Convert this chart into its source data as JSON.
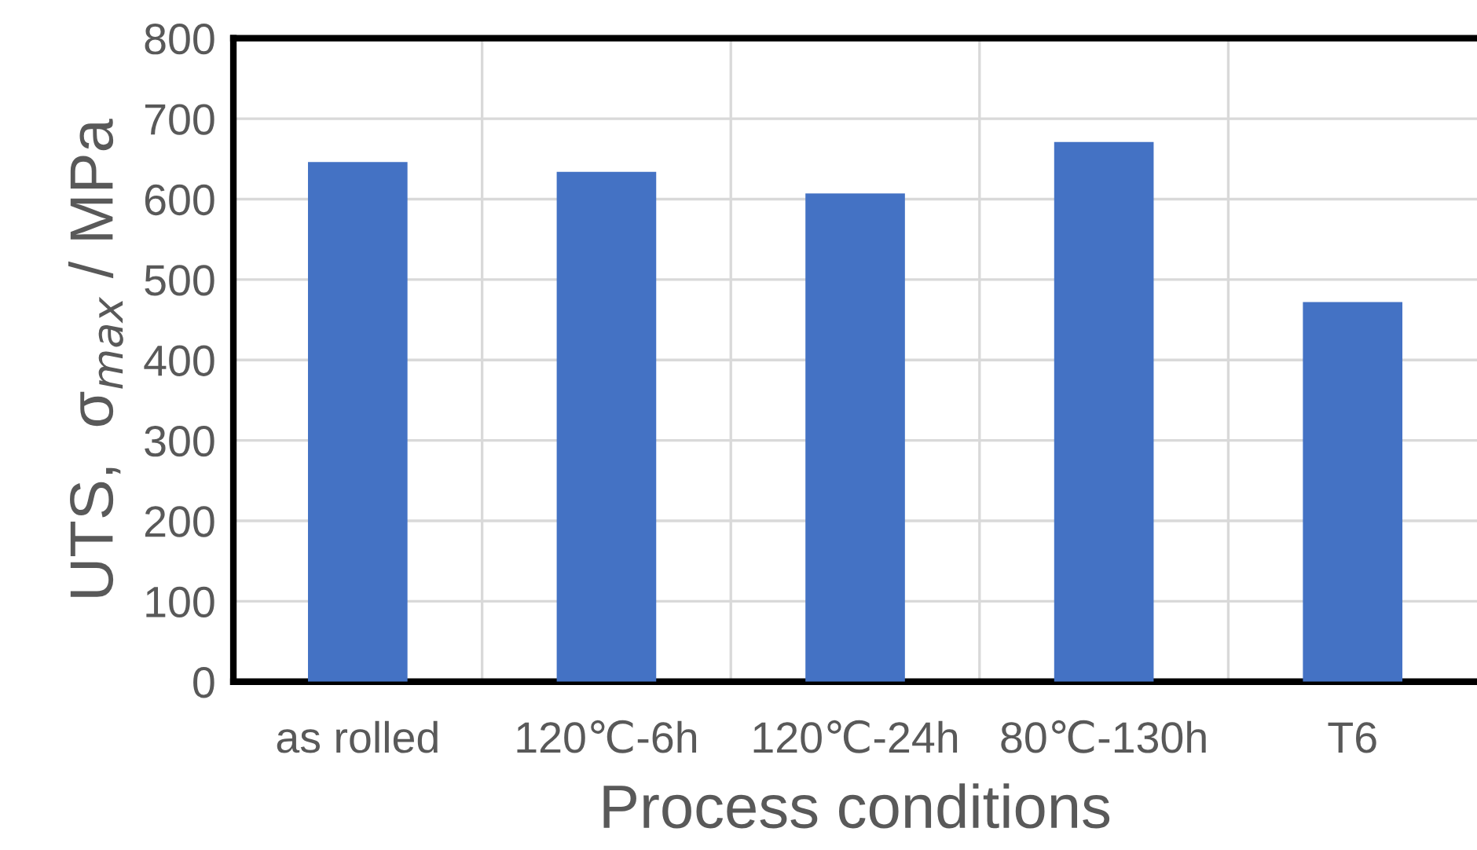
{
  "chart_data": {
    "type": "bar",
    "xlabel": "Process conditions",
    "ylabel": "UTS,  σ$_{max}$ / MPa",
    "categories": [
      "as rolled",
      "120℃-6h",
      "120℃-24h",
      "80℃-130h",
      "T6"
    ],
    "values": [
      646,
      634,
      607,
      671,
      472
    ],
    "color": "#4472c4",
    "ylim": [
      0,
      800
    ],
    "yticks": [
      0,
      100,
      200,
      300,
      400,
      500,
      600,
      700,
      800
    ],
    "grid": true
  }
}
